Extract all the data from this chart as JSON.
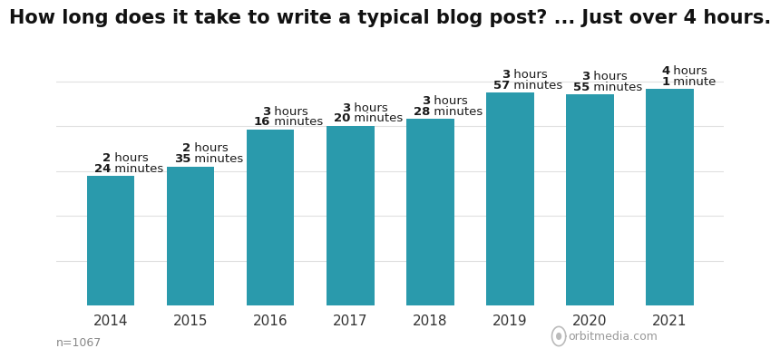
{
  "title": "How long does it take to write a typical blog post? ... Just over 4 hours.",
  "years": [
    "2014",
    "2015",
    "2016",
    "2017",
    "2018",
    "2019",
    "2020",
    "2021"
  ],
  "values_minutes": [
    144,
    155,
    196,
    200,
    208,
    237,
    235,
    241
  ],
  "bar_color": "#2a9aac",
  "background_color": "#ffffff",
  "label_num1": [
    "2",
    "2",
    "3",
    "3",
    "3",
    "3",
    "3",
    "4"
  ],
  "label_unit1": [
    " hours",
    " hours",
    " hours",
    " hours",
    " hours",
    " hours",
    " hours",
    " hours"
  ],
  "label_num2": [
    "24",
    "35",
    "16",
    "20",
    "28",
    "57",
    "55",
    "1"
  ],
  "label_unit2": [
    " minutes",
    " minutes",
    " minutes",
    " minutes",
    " minutes",
    " minutes",
    " minutes",
    " minute"
  ],
  "footnote": "n=1067",
  "watermark": "orbitmedia.com",
  "title_fontsize": 15,
  "label_fontsize": 9.5,
  "tick_fontsize": 11,
  "footnote_fontsize": 9,
  "watermark_fontsize": 9,
  "ylim": [
    0,
    295
  ]
}
